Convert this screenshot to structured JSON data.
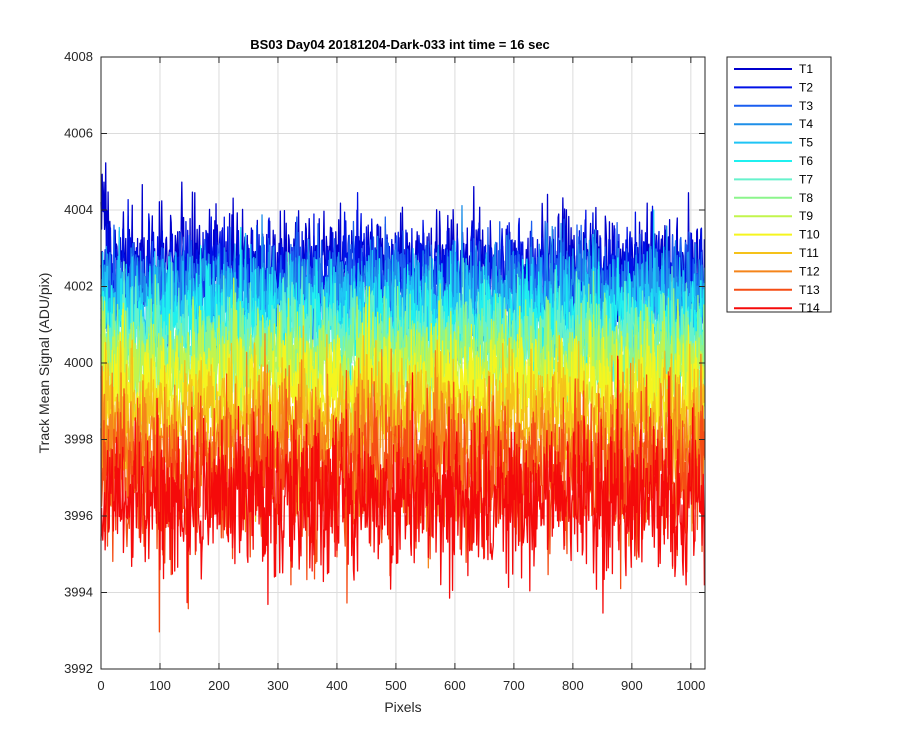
{
  "chart_data": {
    "type": "line",
    "title": "BS03 Day04 20181204-Dark-033 int time = 16 sec",
    "xlabel": "Pixels",
    "ylabel": "Track Mean Signal (ADU/pix)",
    "xlim": [
      0,
      1024
    ],
    "ylim": [
      3992,
      4008
    ],
    "xticks": [
      0,
      100,
      200,
      300,
      400,
      500,
      600,
      700,
      800,
      900,
      1000
    ],
    "yticks": [
      3992,
      3994,
      3996,
      3998,
      4000,
      4002,
      4004,
      4006,
      4008
    ],
    "grid": true,
    "legend_position": "outside-top-right",
    "points_per_series": 1024,
    "series": [
      {
        "name": "T1",
        "color": "#0000cc",
        "mean": 4002.6,
        "noise_sd": 0.7
      },
      {
        "name": "T2",
        "color": "#0011e6",
        "mean": 4002.3,
        "noise_sd": 0.7
      },
      {
        "name": "T3",
        "color": "#1a5ef0",
        "mean": 4002.0,
        "noise_sd": 0.7
      },
      {
        "name": "T4",
        "color": "#1f8fe8",
        "mean": 4001.7,
        "noise_sd": 0.7
      },
      {
        "name": "T5",
        "color": "#1fc4f5",
        "mean": 4001.4,
        "noise_sd": 0.7
      },
      {
        "name": "T6",
        "color": "#1ff0f0",
        "mean": 4001.0,
        "noise_sd": 0.7
      },
      {
        "name": "T7",
        "color": "#66f2cc",
        "mean": 4000.6,
        "noise_sd": 0.7
      },
      {
        "name": "T8",
        "color": "#8cf58c",
        "mean": 4000.2,
        "noise_sd": 0.7
      },
      {
        "name": "T9",
        "color": "#c2f54d",
        "mean": 3999.8,
        "noise_sd": 0.7
      },
      {
        "name": "T10",
        "color": "#f5f51f",
        "mean": 3999.2,
        "noise_sd": 0.8
      },
      {
        "name": "T11",
        "color": "#f5c21a",
        "mean": 3998.6,
        "noise_sd": 0.8
      },
      {
        "name": "T12",
        "color": "#f5851a",
        "mean": 3997.8,
        "noise_sd": 0.9
      },
      {
        "name": "T13",
        "color": "#f54d14",
        "mean": 3997.0,
        "noise_sd": 1.0
      },
      {
        "name": "T14",
        "color": "#f50a0a",
        "mean": 3996.4,
        "noise_sd": 1.0
      }
    ]
  }
}
